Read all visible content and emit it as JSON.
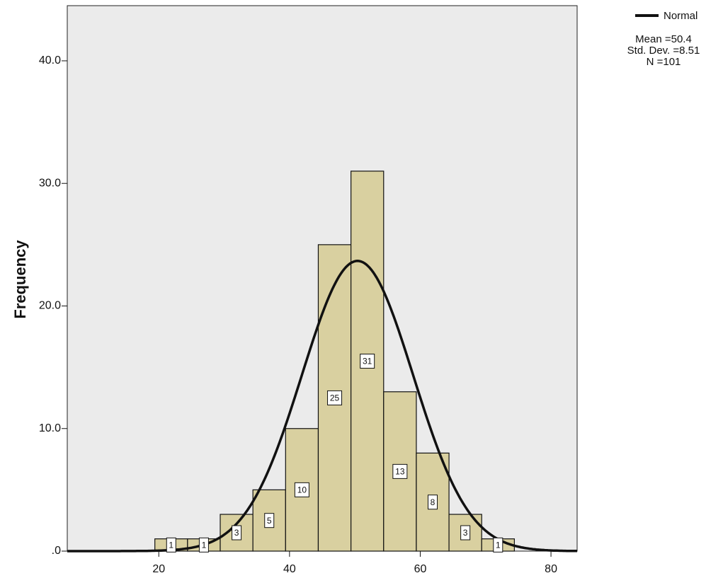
{
  "chart_data": {
    "type": "histogram",
    "ylabel": "Frequency",
    "bins": [
      19.4,
      24.4,
      29.4,
      34.4,
      39.4,
      44.4,
      49.4,
      54.4,
      59.4,
      64.4,
      69.4,
      74.4
    ],
    "counts": [
      1,
      1,
      3,
      5,
      10,
      25,
      31,
      13,
      8,
      3,
      1
    ],
    "color": "#d9d0a0",
    "xlim": [
      6,
      84
    ],
    "xticks": [
      20,
      40,
      60,
      80
    ],
    "ylim": [
      0,
      44.5
    ],
    "yticks": [
      {
        "value": 0,
        "label": ".0"
      },
      {
        "value": 10,
        "label": "10.0"
      },
      {
        "value": 20,
        "label": "20.0"
      },
      {
        "value": 30,
        "label": "30.0"
      },
      {
        "value": 40,
        "label": "40.0"
      }
    ],
    "curve": {
      "name": "Normal",
      "color": "#111111"
    },
    "stats": [
      {
        "label": "Mean =",
        "value": 50.4
      },
      {
        "label": "Std. Dev. =",
        "value": 8.51
      },
      {
        "label": "N =",
        "value": 101
      }
    ]
  }
}
